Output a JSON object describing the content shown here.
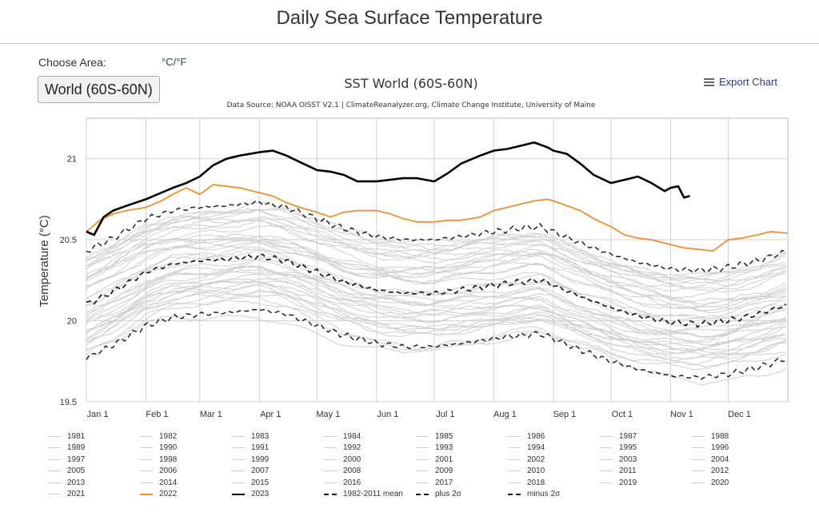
{
  "page": {
    "title": "Daily Sea Surface Temperature",
    "choose_area_label": "Choose Area:",
    "unit_toggle": "°C/°F",
    "area_selected": "World (60S-60N)",
    "export_label": "Export Chart"
  },
  "colors": {
    "year_2022": "#f28e2b",
    "year_2023": "#000000",
    "other_years": "#cfcfcf",
    "mean": "#222222",
    "grid": "#d0d0d0"
  },
  "chart_data": {
    "type": "line",
    "title": "SST World (60S-60N)",
    "subtitle": "Data Source: NOAA OISST V2.1 | ClimateReanalyzer.org, Climate Change Institute, University of Maine",
    "xlabel": "",
    "ylabel": "Temperature (°C)",
    "xlim": [
      1,
      366
    ],
    "ylim": [
      19.5,
      21.25
    ],
    "grid": true,
    "x_ticks": [
      {
        "day": 1,
        "label": "Jan 1"
      },
      {
        "day": 32,
        "label": "Feb 1"
      },
      {
        "day": 60,
        "label": "Mar 1"
      },
      {
        "day": 91,
        "label": "Apr 1"
      },
      {
        "day": 121,
        "label": "May 1"
      },
      {
        "day": 152,
        "label": "Jun 1"
      },
      {
        "day": 182,
        "label": "Jul 1"
      },
      {
        "day": 213,
        "label": "Aug 1"
      },
      {
        "day": 244,
        "label": "Sep 1"
      },
      {
        "day": 274,
        "label": "Oct 1"
      },
      {
        "day": 305,
        "label": "Nov 1"
      },
      {
        "day": 335,
        "label": "Dec 1"
      }
    ],
    "y_ticks": [
      {
        "value": 19.5,
        "label": "19.5"
      },
      {
        "value": 20,
        "label": "20"
      },
      {
        "value": 20.5,
        "label": "20.5"
      },
      {
        "value": 21,
        "label": "21"
      }
    ],
    "climatology": {
      "days": [
        1,
        15,
        32,
        46,
        60,
        74,
        91,
        105,
        121,
        135,
        152,
        166,
        182,
        196,
        213,
        227,
        237,
        244,
        258,
        274,
        288,
        305,
        320,
        335,
        350,
        366
      ],
      "mean": [
        20.1,
        20.18,
        20.3,
        20.35,
        20.37,
        20.38,
        20.4,
        20.37,
        20.3,
        20.24,
        20.19,
        20.17,
        20.17,
        20.19,
        20.22,
        20.24,
        20.25,
        20.22,
        20.15,
        20.08,
        20.03,
        19.99,
        19.98,
        20.0,
        20.04,
        20.1
      ],
      "band": 0.33
    },
    "series": [
      {
        "name": "2022",
        "days": [
          1,
          8,
          15,
          22,
          32,
          40,
          46,
          53,
          60,
          67,
          74,
          81,
          91,
          98,
          105,
          112,
          121,
          128,
          135,
          142,
          152,
          159,
          166,
          173,
          182,
          189,
          196,
          206,
          213,
          220,
          227,
          234,
          241,
          244,
          251,
          258,
          265,
          274,
          281,
          288,
          295,
          305,
          312,
          320,
          327,
          335,
          342,
          350,
          357,
          366
        ],
        "values": [
          20.55,
          20.62,
          20.66,
          20.68,
          20.7,
          20.74,
          20.78,
          20.82,
          20.78,
          20.84,
          20.83,
          20.82,
          20.79,
          20.77,
          20.73,
          20.7,
          20.67,
          20.64,
          20.67,
          20.68,
          20.68,
          20.66,
          20.63,
          20.61,
          20.61,
          20.62,
          20.62,
          20.64,
          20.68,
          20.7,
          20.72,
          20.74,
          20.75,
          20.74,
          20.71,
          20.68,
          20.63,
          20.58,
          20.53,
          20.51,
          20.5,
          20.47,
          20.45,
          20.44,
          20.43,
          20.5,
          20.51,
          20.53,
          20.55,
          20.54
        ]
      },
      {
        "name": "2023",
        "days": [
          1,
          5,
          10,
          15,
          22,
          32,
          40,
          46,
          53,
          60,
          67,
          74,
          81,
          91,
          98,
          105,
          112,
          121,
          128,
          135,
          142,
          152,
          159,
          166,
          173,
          182,
          189,
          196,
          206,
          213,
          220,
          227,
          234,
          241,
          244,
          251,
          258,
          265,
          274,
          281,
          288,
          295,
          302,
          305,
          309,
          312,
          315
        ],
        "values": [
          20.55,
          20.53,
          20.64,
          20.68,
          20.71,
          20.75,
          20.79,
          20.82,
          20.85,
          20.89,
          20.96,
          21.0,
          21.02,
          21.04,
          21.05,
          21.02,
          20.98,
          20.93,
          20.92,
          20.9,
          20.86,
          20.86,
          20.87,
          20.88,
          20.88,
          20.86,
          20.91,
          20.97,
          21.02,
          21.05,
          21.06,
          21.08,
          21.1,
          21.07,
          21.05,
          21.03,
          20.97,
          20.9,
          20.85,
          20.87,
          20.89,
          20.85,
          20.8,
          20.82,
          20.83,
          20.76,
          20.77
        ]
      }
    ],
    "legend": [
      "1981",
      "1982",
      "1983",
      "1984",
      "1985",
      "1986",
      "1987",
      "1988",
      "1989",
      "1990",
      "1991",
      "1992",
      "1993",
      "1994",
      "1995",
      "1996",
      "1997",
      "1998",
      "1999",
      "2000",
      "2001",
      "2002",
      "2003",
      "2004",
      "2005",
      "2006",
      "2007",
      "2008",
      "2009",
      "2010",
      "2011",
      "2012",
      "2013",
      "2014",
      "2015",
      "2016",
      "2017",
      "2018",
      "2019",
      "2020",
      "2021",
      "2022",
      "2023",
      "1982-2011 mean",
      "plus 2σ",
      "minus 2σ"
    ]
  }
}
